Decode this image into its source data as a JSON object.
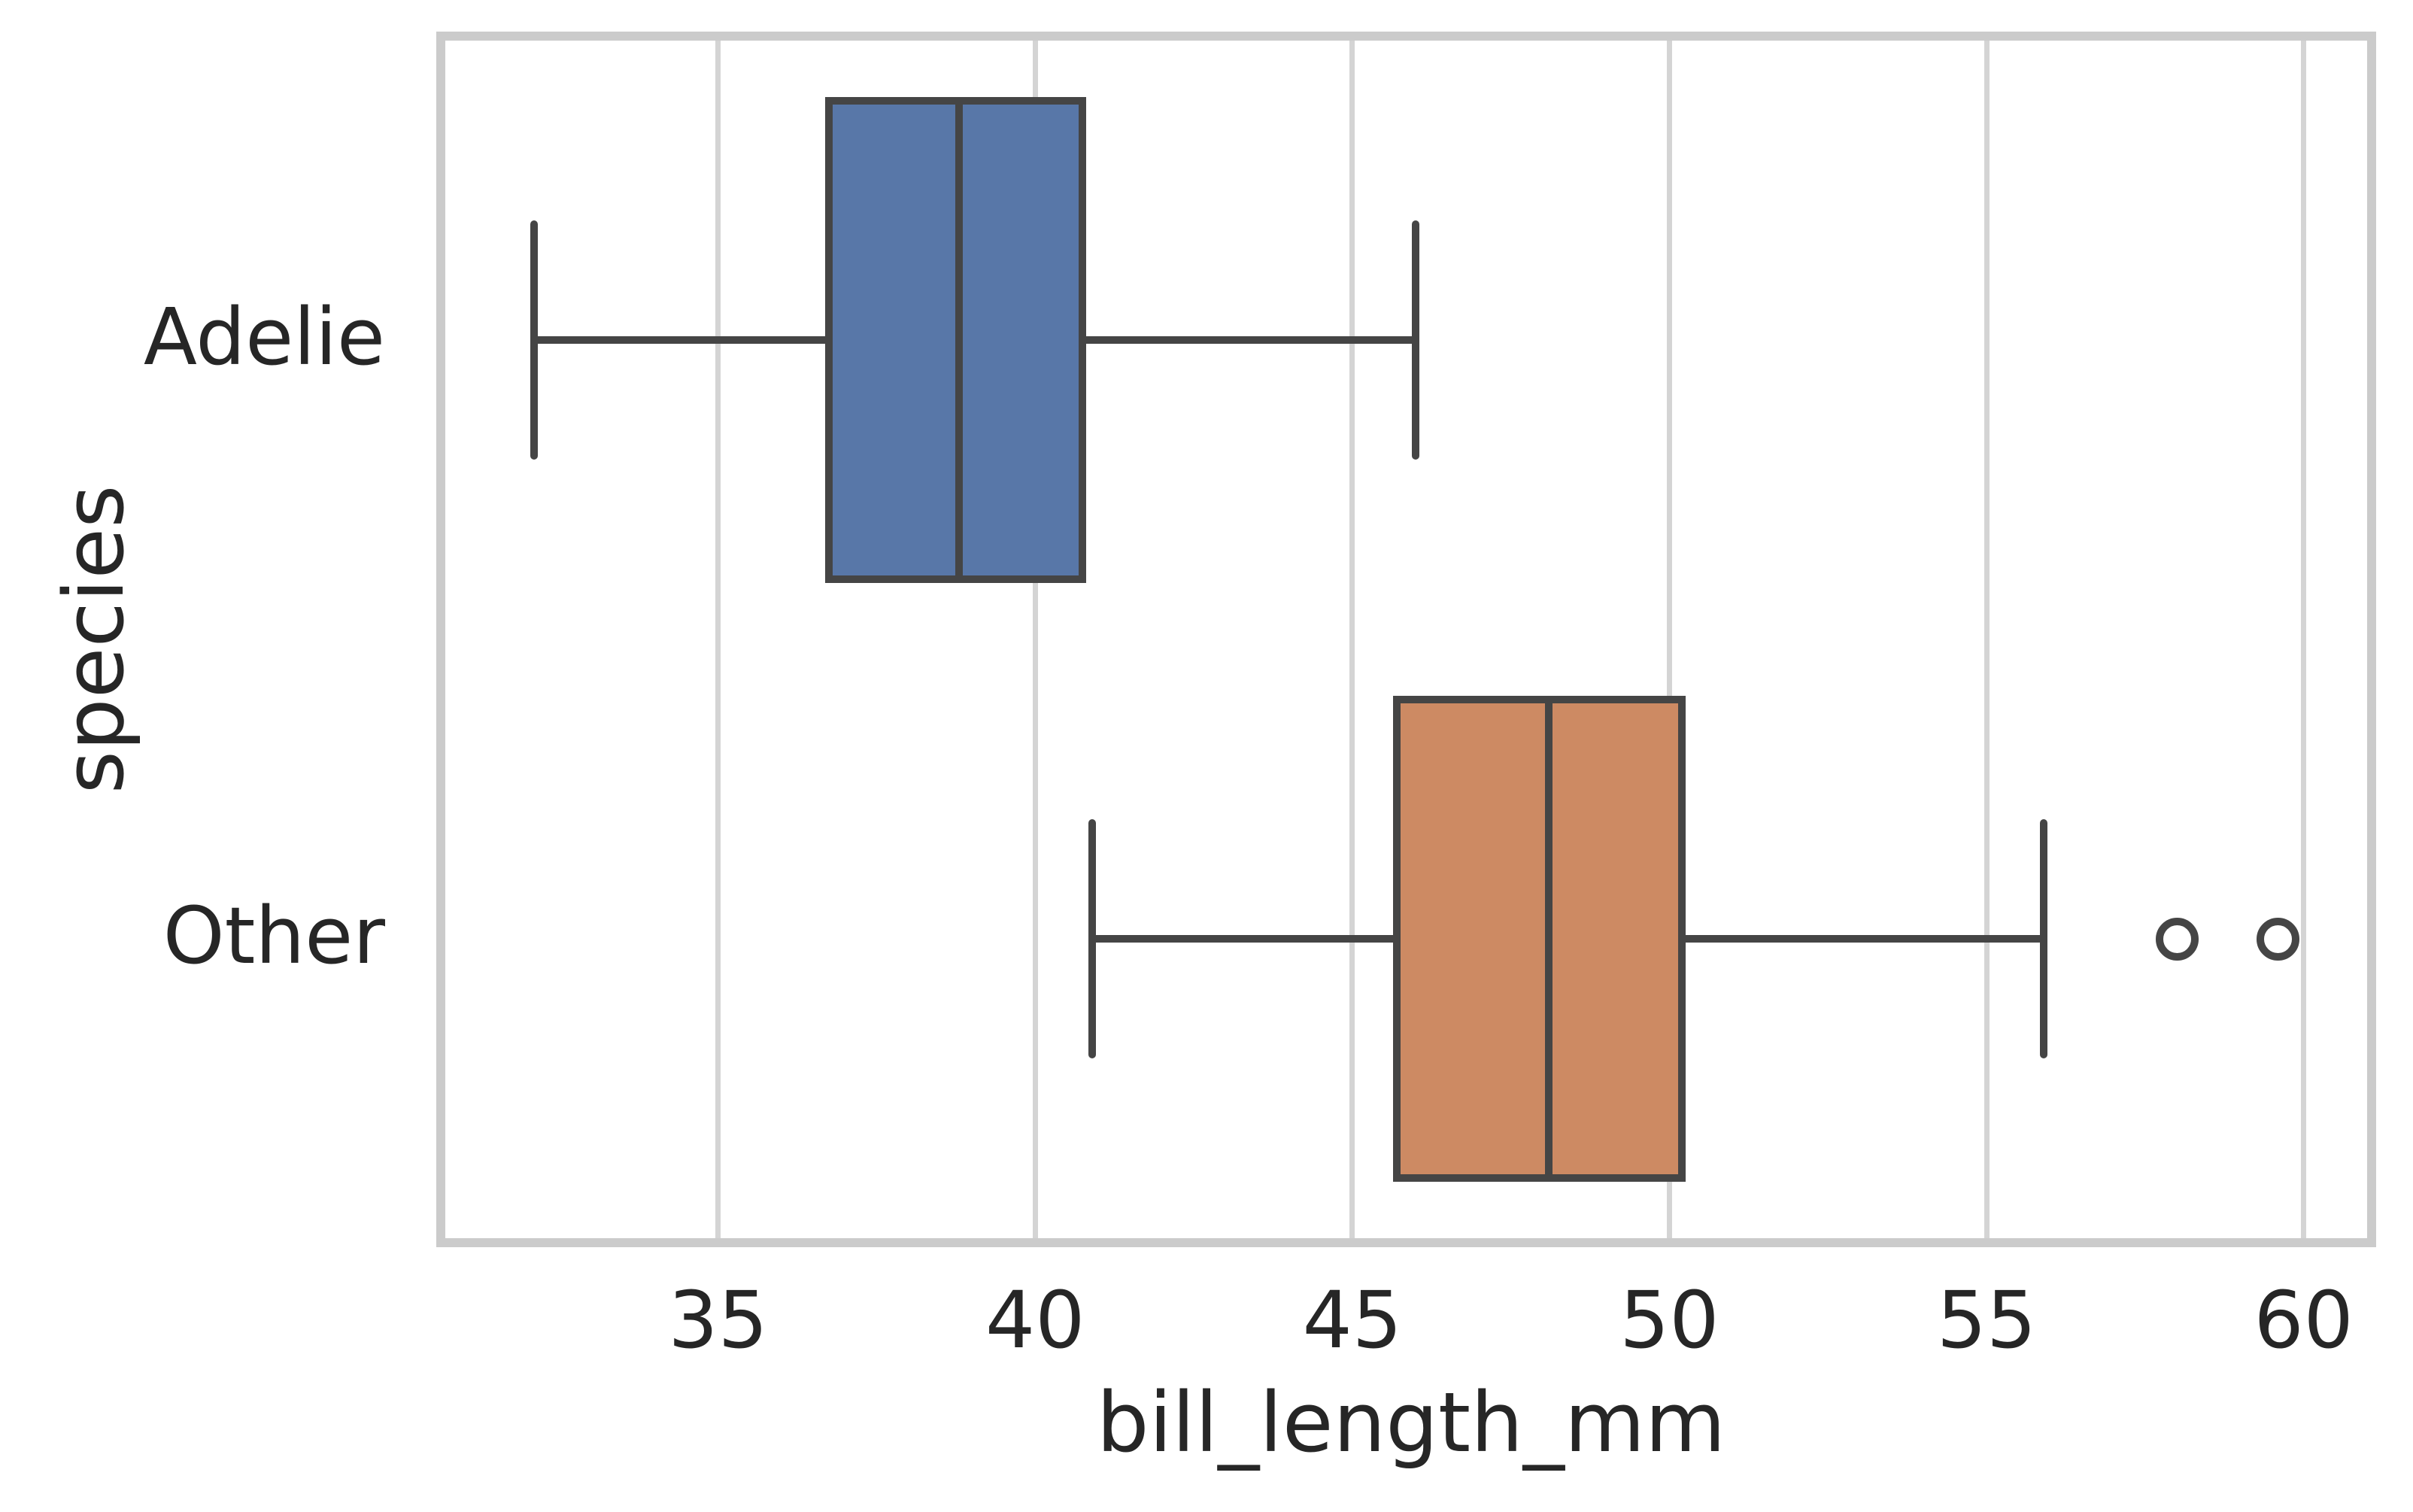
{
  "figure": {
    "background": "#ffffff"
  },
  "chart_data": {
    "type": "boxplot",
    "orientation": "horizontal",
    "title": "",
    "xlabel": "bill_length_mm",
    "ylabel": "species",
    "categories": [
      "Adelie",
      "Other"
    ],
    "xlim": [
      30.7,
      61.0
    ],
    "x_ticks": [
      35,
      40,
      45,
      50,
      55,
      60
    ],
    "grid": true,
    "legend": "none",
    "series": [
      {
        "name": "Adelie",
        "fill_color": "#5877A8",
        "whisker_low": 32.1,
        "q1": 36.75,
        "median": 38.8,
        "q3": 40.75,
        "whisker_high": 46.0,
        "outliers": []
      },
      {
        "name": "Other",
        "fill_color": "#CD8A63",
        "whisker_low": 40.9,
        "q1": 45.7,
        "median": 48.1,
        "q3": 50.2,
        "whisker_high": 55.9,
        "outliers": [
          58.0,
          59.6
        ]
      }
    ],
    "style": {
      "box_edge_color": "#454545",
      "grid_color": "#d4d4d4",
      "spine_color": "#cbcbcb",
      "text_color": "#262626",
      "background": "#ffffff"
    }
  }
}
